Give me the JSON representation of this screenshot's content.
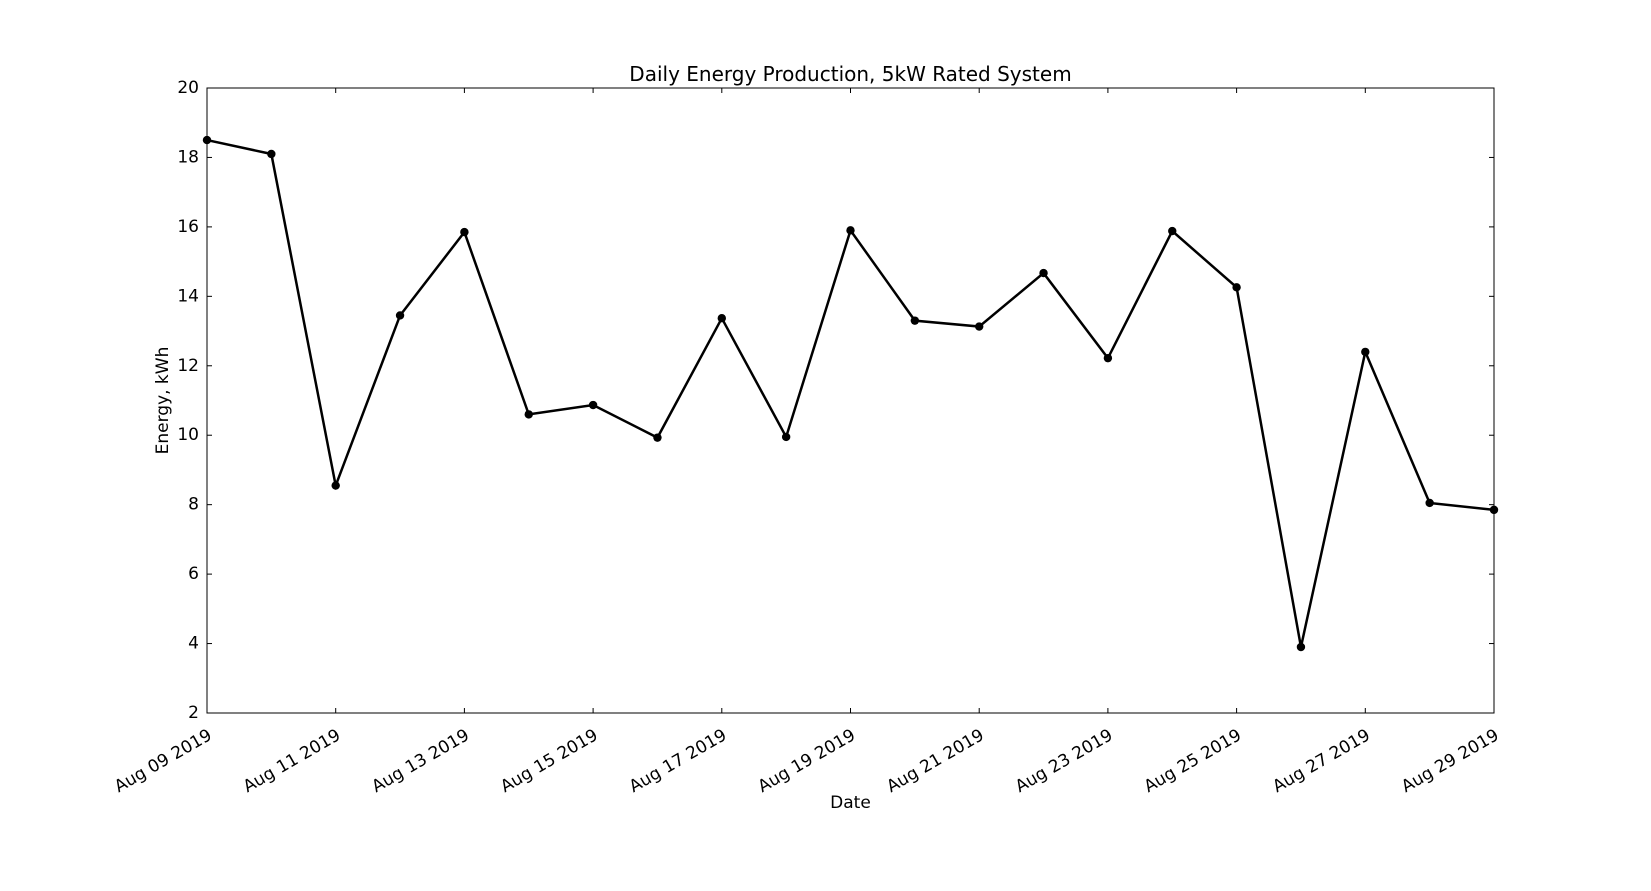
{
  "chart_data": {
    "type": "line",
    "title": "Daily Energy Production, 5kW Rated System",
    "xlabel": "Date",
    "ylabel": "Energy, kWh",
    "x_axis_type": "date",
    "xlim": [
      "2019-08-09",
      "2019-08-29"
    ],
    "ylim": [
      2,
      20
    ],
    "x_ticks": [
      "2019-08-09",
      "2019-08-11",
      "2019-08-13",
      "2019-08-15",
      "2019-08-17",
      "2019-08-19",
      "2019-08-21",
      "2019-08-23",
      "2019-08-25",
      "2019-08-27",
      "2019-08-29"
    ],
    "x_tick_labels": [
      "Aug 09 2019",
      "Aug 11 2019",
      "Aug 13 2019",
      "Aug 15 2019",
      "Aug 17 2019",
      "Aug 19 2019",
      "Aug 21 2019",
      "Aug 23 2019",
      "Aug 25 2019",
      "Aug 27 2019",
      "Aug 29 2019"
    ],
    "y_ticks": [
      2,
      4,
      6,
      8,
      10,
      12,
      14,
      16,
      18,
      20
    ],
    "y_tick_labels": [
      "2",
      "4",
      "6",
      "8",
      "10",
      "12",
      "14",
      "16",
      "18",
      "20"
    ],
    "grid": false,
    "legend": "none",
    "series": [
      {
        "color": "#000000",
        "marker": "circle",
        "x": [
          "2019-08-09",
          "2019-08-10",
          "2019-08-11",
          "2019-08-12",
          "2019-08-13",
          "2019-08-14",
          "2019-08-15",
          "2019-08-16",
          "2019-08-17",
          "2019-08-18",
          "2019-08-19",
          "2019-08-20",
          "2019-08-21",
          "2019-08-22",
          "2019-08-23",
          "2019-08-24",
          "2019-08-25",
          "2019-08-26",
          "2019-08-27",
          "2019-08-28",
          "2019-08-29"
        ],
        "y": [
          18.5,
          18.1,
          8.55,
          13.45,
          15.85,
          10.6,
          10.87,
          9.93,
          13.37,
          9.95,
          15.9,
          13.3,
          13.13,
          14.67,
          12.22,
          15.88,
          14.26,
          3.9,
          12.4,
          8.05,
          7.85
        ]
      }
    ]
  }
}
